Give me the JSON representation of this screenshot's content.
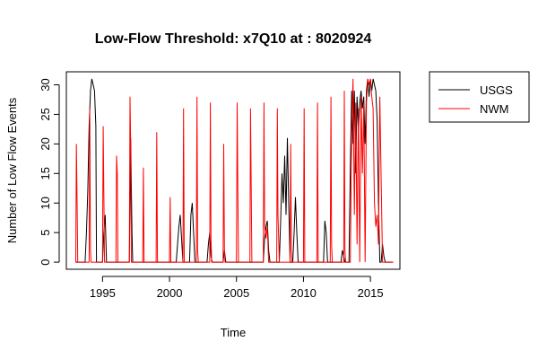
{
  "chart_data": {
    "type": "line",
    "title": "Low-Flow Threshold: x7Q10 at : 8020924",
    "xlabel": "Time",
    "ylabel": "Number of Low Flow Events",
    "xlim": [
      1992.3,
      2017.2
    ],
    "ylim": [
      -1.2,
      32.2
    ],
    "xticks": [
      1995,
      2000,
      2005,
      2010,
      2015
    ],
    "yticks": [
      0,
      5,
      10,
      15,
      20,
      25,
      30
    ],
    "grid": false,
    "legend": "top-right",
    "series": [
      {
        "name": "USGS",
        "color": "#000000",
        "points": [
          [
            1993.0,
            0
          ],
          [
            1993.7,
            0
          ],
          [
            1993.8,
            5
          ],
          [
            1993.9,
            12
          ],
          [
            1994.0,
            23
          ],
          [
            1994.1,
            29
          ],
          [
            1994.2,
            31
          ],
          [
            1994.3,
            30
          ],
          [
            1994.4,
            29
          ],
          [
            1994.5,
            23
          ],
          [
            1994.55,
            0
          ],
          [
            1995.0,
            0
          ],
          [
            1995.1,
            5
          ],
          [
            1995.2,
            8
          ],
          [
            1995.3,
            0
          ],
          [
            1997.0,
            0
          ],
          [
            1997.1,
            21
          ],
          [
            1997.2,
            5
          ],
          [
            1997.25,
            0
          ],
          [
            2000.5,
            0
          ],
          [
            2000.6,
            3
          ],
          [
            2000.7,
            6
          ],
          [
            2000.8,
            8
          ],
          [
            2000.9,
            4
          ],
          [
            2001.0,
            0
          ],
          [
            2001.5,
            0
          ],
          [
            2001.6,
            8
          ],
          [
            2001.7,
            10
          ],
          [
            2001.8,
            5
          ],
          [
            2001.9,
            0
          ],
          [
            2002.8,
            0
          ],
          [
            2002.9,
            3
          ],
          [
            2003.0,
            5
          ],
          [
            2003.1,
            1
          ],
          [
            2003.2,
            0
          ],
          [
            2004.0,
            0
          ],
          [
            2004.1,
            2
          ],
          [
            2004.2,
            0
          ],
          [
            2007.0,
            0
          ],
          [
            2007.1,
            4
          ],
          [
            2007.2,
            6
          ],
          [
            2007.3,
            7
          ],
          [
            2007.4,
            2
          ],
          [
            2007.5,
            0
          ],
          [
            2008.2,
            0
          ],
          [
            2008.3,
            7
          ],
          [
            2008.4,
            15
          ],
          [
            2008.5,
            10
          ],
          [
            2008.6,
            18
          ],
          [
            2008.7,
            8
          ],
          [
            2008.8,
            21
          ],
          [
            2008.9,
            10
          ],
          [
            2009.0,
            0
          ],
          [
            2009.2,
            0
          ],
          [
            2009.3,
            5
          ],
          [
            2009.4,
            11
          ],
          [
            2009.5,
            5
          ],
          [
            2009.6,
            0
          ],
          [
            2011.5,
            0
          ],
          [
            2011.6,
            7
          ],
          [
            2011.7,
            5
          ],
          [
            2011.8,
            0
          ],
          [
            2012.8,
            0
          ],
          [
            2012.9,
            2
          ],
          [
            2013.0,
            1
          ],
          [
            2013.1,
            0
          ],
          [
            2013.4,
            0
          ],
          [
            2013.5,
            16
          ],
          [
            2013.6,
            29
          ],
          [
            2013.7,
            20
          ],
          [
            2013.8,
            29
          ],
          [
            2013.9,
            15
          ],
          [
            2014.0,
            28
          ],
          [
            2014.1,
            22
          ],
          [
            2014.2,
            27
          ],
          [
            2014.3,
            29
          ],
          [
            2014.4,
            26
          ],
          [
            2014.5,
            28
          ],
          [
            2014.6,
            20
          ],
          [
            2014.7,
            29
          ],
          [
            2014.8,
            31
          ],
          [
            2014.9,
            28
          ],
          [
            2015.0,
            31
          ],
          [
            2015.1,
            29
          ],
          [
            2015.2,
            31
          ],
          [
            2015.3,
            30
          ],
          [
            2015.4,
            29
          ],
          [
            2015.5,
            24
          ],
          [
            2015.6,
            10
          ],
          [
            2015.7,
            0
          ],
          [
            2015.8,
            0
          ],
          [
            2015.9,
            3
          ],
          [
            2016.0,
            1
          ],
          [
            2016.1,
            0
          ],
          [
            2016.7,
            0
          ]
        ]
      },
      {
        "name": "NWM",
        "color": "#ff0000",
        "points": [
          [
            1993.0,
            0
          ],
          [
            1993.05,
            20
          ],
          [
            1993.1,
            10
          ],
          [
            1993.15,
            0
          ],
          [
            1994.0,
            0
          ],
          [
            1994.05,
            26
          ],
          [
            1994.1,
            2
          ],
          [
            1994.15,
            0
          ],
          [
            1995.0,
            0
          ],
          [
            1995.05,
            23
          ],
          [
            1995.1,
            12
          ],
          [
            1995.15,
            0
          ],
          [
            1996.0,
            0
          ],
          [
            1996.05,
            18
          ],
          [
            1996.1,
            15
          ],
          [
            1996.15,
            0
          ],
          [
            1997.0,
            0
          ],
          [
            1997.05,
            28
          ],
          [
            1997.1,
            20
          ],
          [
            1997.15,
            0
          ],
          [
            1998.0,
            0
          ],
          [
            1998.05,
            16
          ],
          [
            1998.1,
            0
          ],
          [
            1999.0,
            0
          ],
          [
            1999.05,
            22
          ],
          [
            1999.1,
            0
          ],
          [
            2000.0,
            0
          ],
          [
            2000.05,
            11
          ],
          [
            2000.1,
            0
          ],
          [
            2001.0,
            0
          ],
          [
            2001.05,
            26
          ],
          [
            2001.1,
            0
          ],
          [
            2002.0,
            0
          ],
          [
            2002.05,
            28
          ],
          [
            2002.1,
            2
          ],
          [
            2002.15,
            0
          ],
          [
            2003.0,
            0
          ],
          [
            2003.05,
            27
          ],
          [
            2003.1,
            4
          ],
          [
            2003.15,
            0
          ],
          [
            2004.0,
            0
          ],
          [
            2004.05,
            20
          ],
          [
            2004.1,
            2
          ],
          [
            2004.15,
            0
          ],
          [
            2005.0,
            0
          ],
          [
            2005.05,
            27
          ],
          [
            2005.1,
            13
          ],
          [
            2005.15,
            0
          ],
          [
            2006.0,
            0
          ],
          [
            2006.05,
            26
          ],
          [
            2006.1,
            12
          ],
          [
            2006.15,
            0
          ],
          [
            2007.0,
            0
          ],
          [
            2007.05,
            27
          ],
          [
            2007.1,
            6
          ],
          [
            2007.2,
            4
          ],
          [
            2007.3,
            6
          ],
          [
            2007.4,
            0
          ],
          [
            2008.0,
            0
          ],
          [
            2008.05,
            26
          ],
          [
            2008.1,
            8
          ],
          [
            2008.2,
            0
          ],
          [
            2009.0,
            0
          ],
          [
            2009.05,
            20
          ],
          [
            2009.1,
            2
          ],
          [
            2009.15,
            0
          ],
          [
            2010.0,
            0
          ],
          [
            2010.05,
            26
          ],
          [
            2010.1,
            0
          ],
          [
            2011.0,
            0
          ],
          [
            2011.05,
            27
          ],
          [
            2011.1,
            0
          ],
          [
            2012.0,
            0
          ],
          [
            2012.05,
            28
          ],
          [
            2012.1,
            3
          ],
          [
            2012.15,
            0
          ],
          [
            2013.0,
            0
          ],
          [
            2013.05,
            29
          ],
          [
            2013.1,
            2
          ],
          [
            2013.15,
            0
          ],
          [
            2013.5,
            0
          ],
          [
            2013.6,
            22
          ],
          [
            2013.7,
            31
          ],
          [
            2013.8,
            8
          ],
          [
            2013.9,
            27
          ],
          [
            2014.0,
            3
          ],
          [
            2014.1,
            26
          ],
          [
            2014.2,
            0
          ],
          [
            2014.3,
            28
          ],
          [
            2014.4,
            15
          ],
          [
            2014.5,
            27
          ],
          [
            2014.6,
            0
          ],
          [
            2014.7,
            27
          ],
          [
            2014.8,
            31
          ],
          [
            2014.9,
            30
          ],
          [
            2015.0,
            31
          ],
          [
            2015.1,
            28
          ],
          [
            2015.2,
            26
          ],
          [
            2015.3,
            10
          ],
          [
            2015.4,
            6
          ],
          [
            2015.5,
            8
          ],
          [
            2015.6,
            3
          ],
          [
            2015.7,
            28
          ],
          [
            2015.8,
            14
          ],
          [
            2015.9,
            0
          ],
          [
            2016.7,
            0
          ]
        ]
      }
    ]
  }
}
